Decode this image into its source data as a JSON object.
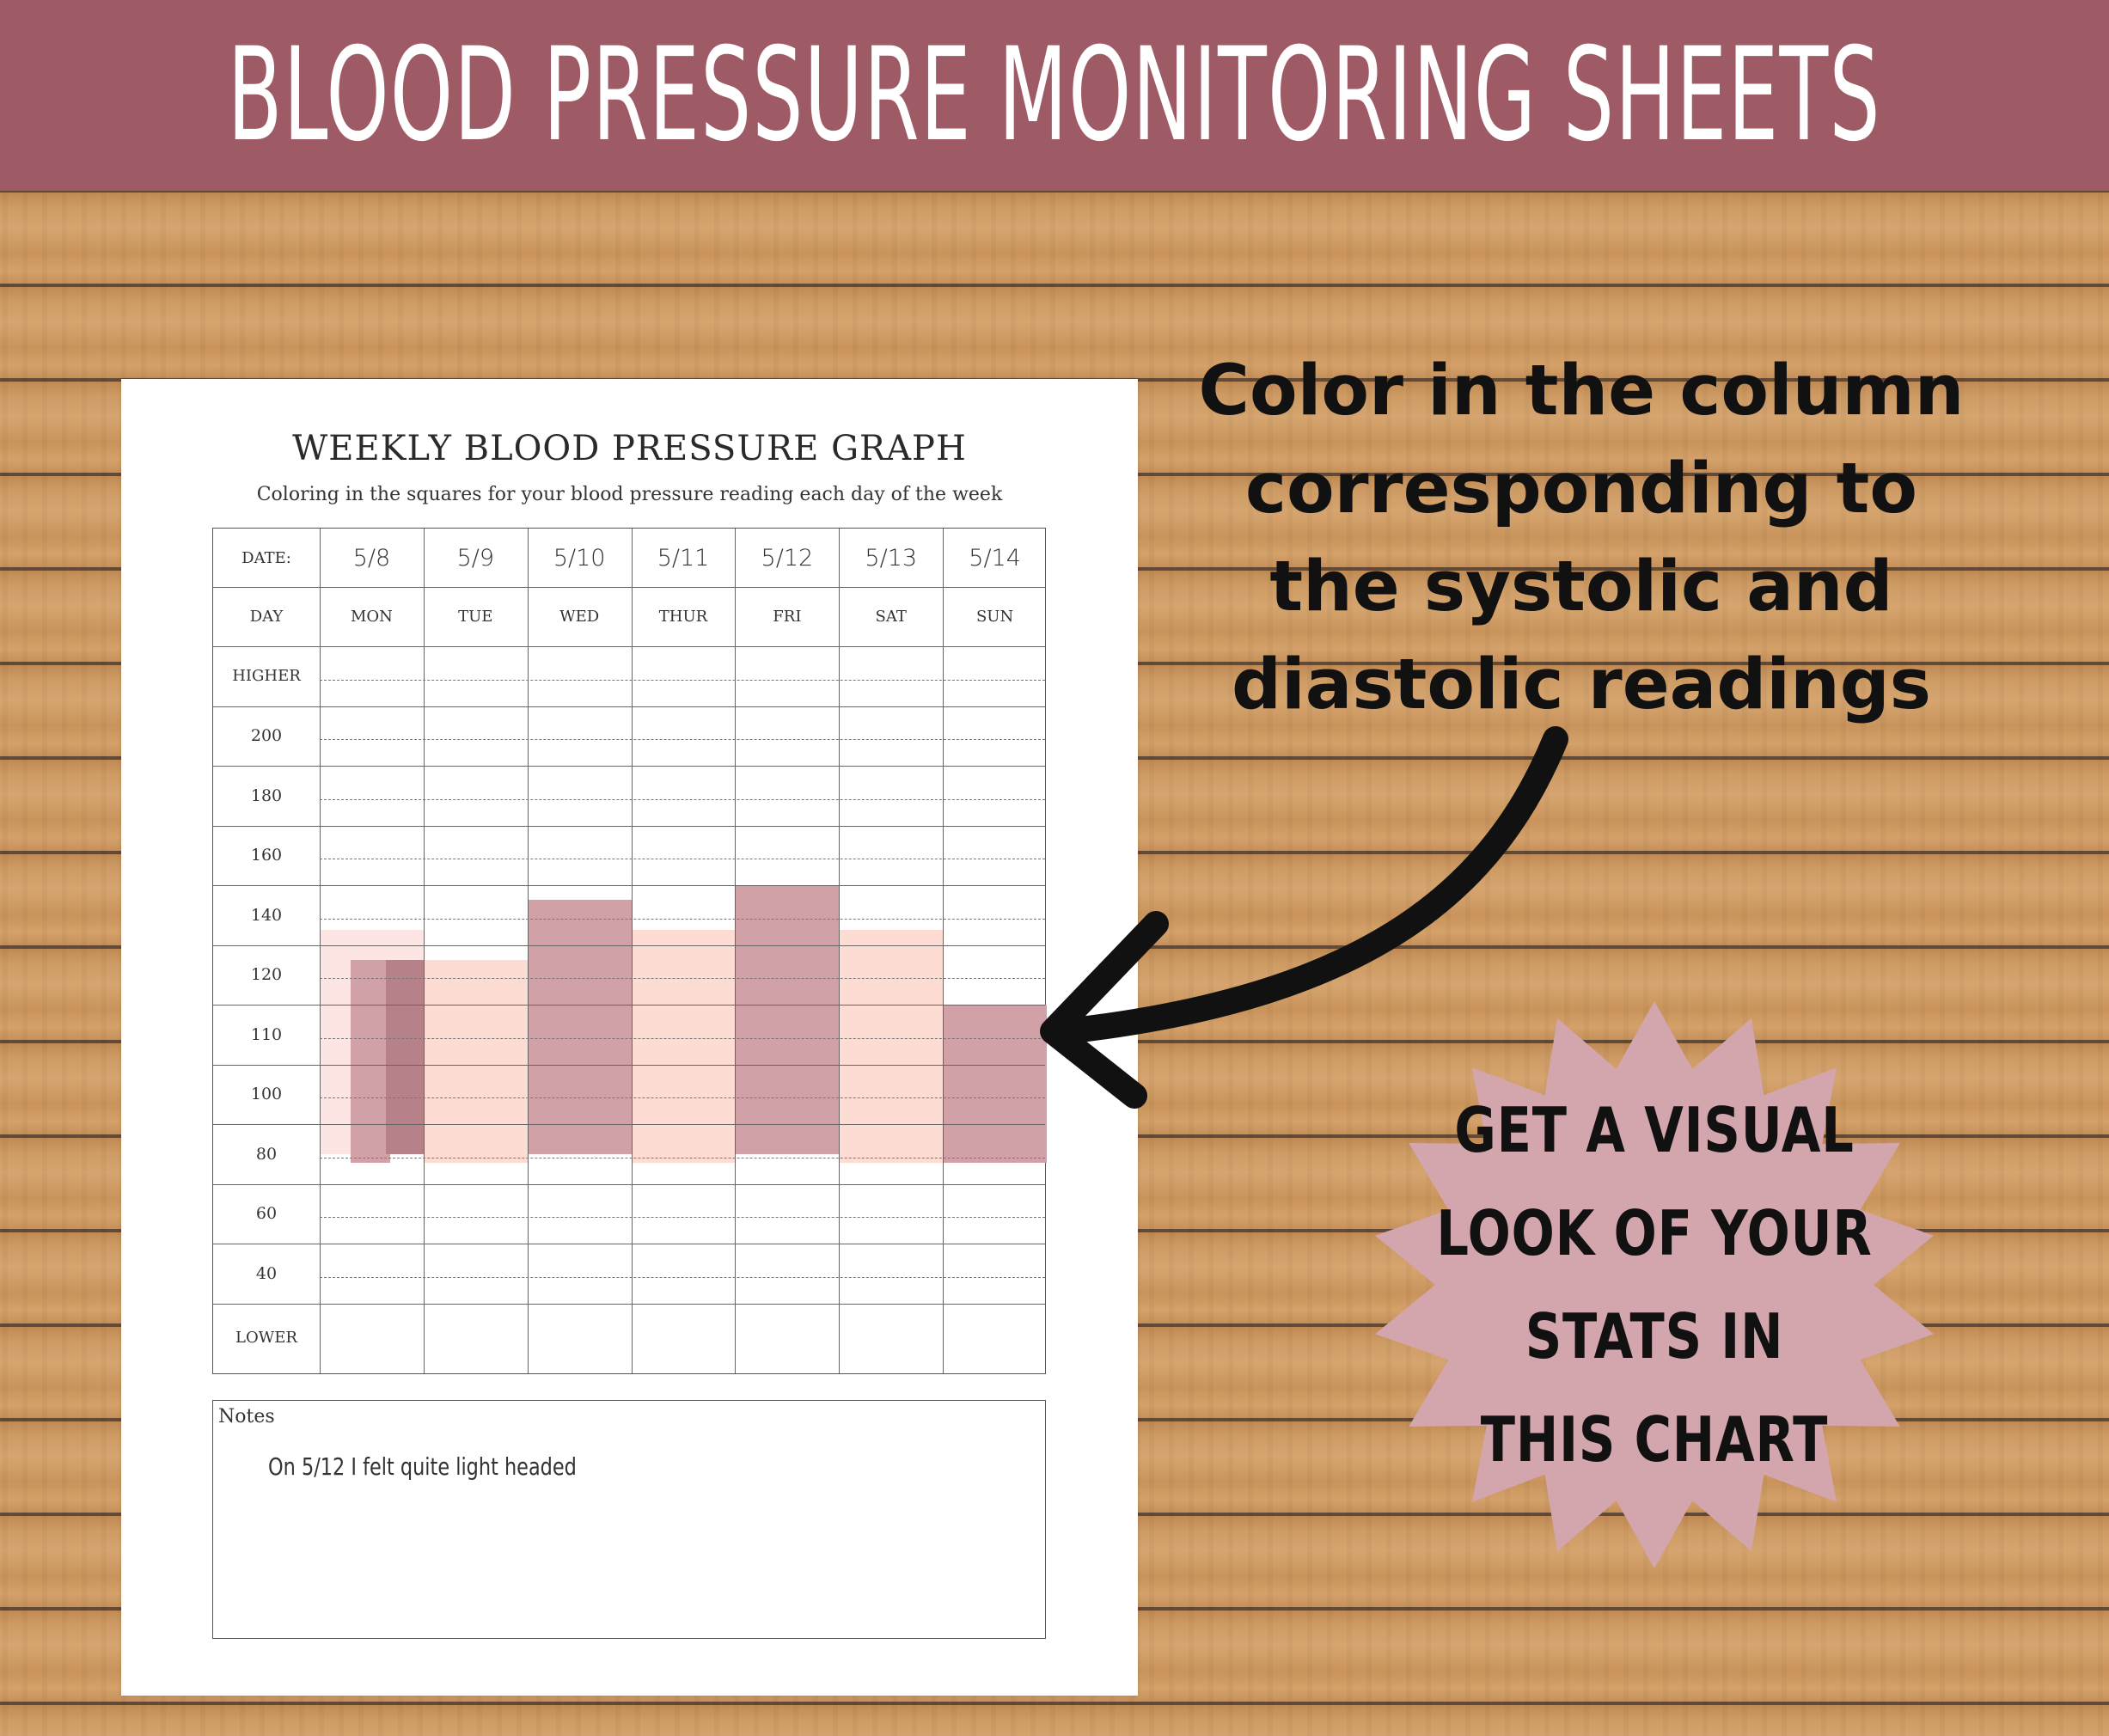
{
  "banner": {
    "title": "BLOOD PRESSURE MONITORING SHEETS"
  },
  "sheet": {
    "title": "WEEKLY BLOOD PRESSURE GRAPH",
    "subtitle": "Coloring in the squares for your blood pressure reading each day of the week",
    "date_label": "DATE:",
    "day_label": "DAY",
    "dates": [
      "5/8",
      "5/9",
      "5/10",
      "5/11",
      "5/12",
      "5/13",
      "5/14"
    ],
    "days": [
      "MON",
      "TUE",
      "WED",
      "THUR",
      "FRI",
      "SAT",
      "SUN"
    ],
    "row_labels": [
      "HIGHER",
      "200",
      "180",
      "160",
      "140",
      "120",
      "110",
      "100",
      "80",
      "60",
      "40",
      "LOWER"
    ],
    "notes_label": "Notes",
    "notes_text": "On 5/12 I felt quite light headed"
  },
  "chart_data": {
    "type": "bar",
    "categories": [
      "5/8",
      "5/9",
      "5/10",
      "5/11",
      "5/12",
      "5/13",
      "5/14"
    ],
    "y_axis_ticks": [
      "200",
      "180",
      "160",
      "140",
      "120",
      "110",
      "100",
      "80",
      "60",
      "40"
    ],
    "bar_colors": {
      "light": "#fcdcd3",
      "lighter": "#fde5e3",
      "medium": "#d2a0a7",
      "dark": "#b7818a"
    },
    "colored_ranges": [
      {
        "date": "5/8",
        "from": 80,
        "to": 135,
        "color": "#fde5e3"
      },
      {
        "date": "5/8",
        "from": 77,
        "to": 125,
        "color": "#d2a0a7"
      },
      {
        "date": "5/8",
        "from": 80,
        "to": 125,
        "color": "#b7818a"
      },
      {
        "date": "5/9",
        "from": 77,
        "to": 125,
        "color": "#fcdcd3"
      },
      {
        "date": "5/10",
        "from": 80,
        "to": 145,
        "color": "#d2a0a7"
      },
      {
        "date": "5/11",
        "from": 77,
        "to": 135,
        "color": "#fcdcd3"
      },
      {
        "date": "5/12",
        "from": 80,
        "to": 150,
        "color": "#d2a0a7"
      },
      {
        "date": "5/13",
        "from": 77,
        "to": 135,
        "color": "#fcdcd3"
      },
      {
        "date": "5/14",
        "from": 77,
        "to": 115,
        "color": "#d2a0a7"
      }
    ]
  },
  "caption": {
    "lines": [
      "Color in the column",
      "corresponding to",
      "the systolic and",
      "diastolic readings"
    ]
  },
  "burst": {
    "lines": [
      "GET A VISUAL",
      "LOOK OF YOUR",
      "STATS IN",
      "THIS CHART"
    ],
    "color": "#d3a5ad"
  }
}
